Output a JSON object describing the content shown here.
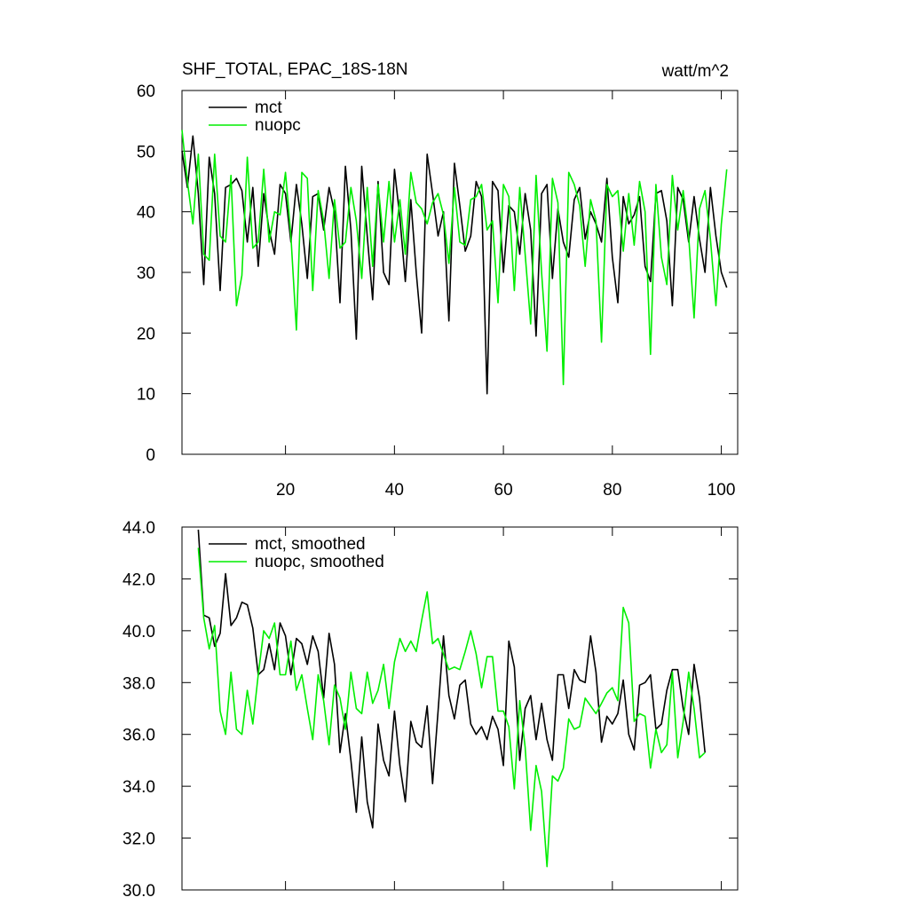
{
  "chart_data": [
    {
      "type": "line",
      "title": "SHF_TOTAL, EPAC_18S-18N",
      "title_right": "watt/m^2",
      "x": [
        1,
        2,
        3,
        4,
        5,
        6,
        7,
        8,
        9,
        10,
        11,
        12,
        13,
        14,
        15,
        16,
        17,
        18,
        19,
        20,
        21,
        22,
        23,
        24,
        25,
        26,
        27,
        28,
        29,
        30,
        31,
        32,
        33,
        34,
        35,
        36,
        37,
        38,
        39,
        40,
        41,
        42,
        43,
        44,
        45,
        46,
        47,
        48,
        49,
        50,
        51,
        52,
        53,
        54,
        55,
        56,
        57,
        58,
        59,
        60,
        61,
        62,
        63,
        64,
        65,
        66,
        67,
        68,
        69,
        70,
        71,
        72,
        73,
        74,
        75,
        76,
        77,
        78,
        79,
        80,
        81,
        82,
        83,
        84,
        85,
        86,
        87,
        88,
        89,
        90,
        91,
        92,
        93,
        94,
        95,
        96,
        97,
        98,
        99,
        100,
        101
      ],
      "series": [
        {
          "name": "mct",
          "color": "#000000",
          "values": [
            50,
            44,
            52.5,
            43,
            28,
            49,
            43,
            27,
            44,
            44.5,
            45.5,
            43.5,
            35,
            44,
            31,
            43,
            37,
            33,
            44.5,
            43,
            35,
            44.5,
            38,
            29,
            42.5,
            43,
            37,
            44,
            40,
            25,
            47.5,
            37,
            19,
            47.5,
            36,
            25.5,
            45,
            30,
            28,
            47,
            39,
            28.5,
            42,
            30,
            20,
            49.5,
            43,
            36,
            40,
            22,
            48,
            41,
            33.5,
            36,
            45,
            42.5,
            10,
            45,
            43.5,
            30,
            41,
            40,
            33,
            43,
            37,
            19.5,
            43,
            44.5,
            29,
            40.5,
            35,
            32.5,
            42,
            44,
            35.5,
            40,
            38,
            35,
            45.5,
            32.5,
            25,
            42.5,
            38,
            39.5,
            42.5,
            31,
            28.5,
            43,
            43.5,
            38.5,
            24.5,
            44,
            42,
            35,
            42.5,
            35.5,
            30,
            44,
            36,
            30,
            27.5
          ]
        },
        {
          "name": "nuopc",
          "color": "#00ee00",
          "values": [
            53.5,
            45,
            38,
            49.5,
            33,
            32,
            49.5,
            36,
            35,
            46,
            24.5,
            29.5,
            49,
            34,
            35,
            47,
            35,
            40,
            39.5,
            46.5,
            36,
            20.5,
            46.5,
            45.5,
            27,
            43.5,
            38.5,
            29,
            42,
            34,
            35,
            44,
            38.5,
            29,
            44,
            31,
            44.5,
            35,
            45,
            35,
            42,
            33,
            46.5,
            41.5,
            40.5,
            38,
            41.5,
            43,
            39.5,
            31.5,
            44,
            35,
            34.5,
            42,
            42.5,
            44.5,
            37,
            38.5,
            25,
            44.5,
            42.5,
            27,
            44,
            33,
            21.5,
            46,
            30,
            17,
            45.5,
            41.5,
            11.5,
            46.5,
            44.5,
            41,
            31,
            42,
            38.5,
            18.5,
            44.5,
            42.5,
            43.5,
            33.5,
            43,
            34.5,
            45,
            40,
            16.5,
            44.5,
            32.5,
            28,
            46,
            37,
            43.5,
            36,
            22.5,
            40.5,
            43.5,
            35.5,
            24.5,
            38,
            47
          ]
        }
      ],
      "xlim": [
        1,
        103
      ],
      "xticks": [
        20,
        40,
        60,
        80,
        100
      ],
      "show_xtick_labels": true,
      "ylim": [
        0,
        60
      ],
      "yticks": [
        0,
        10,
        20,
        30,
        40,
        50,
        60
      ],
      "legend": "upper left"
    },
    {
      "type": "line",
      "x": [
        4,
        5,
        6,
        7,
        8,
        9,
        10,
        11,
        12,
        13,
        14,
        15,
        16,
        17,
        18,
        19,
        20,
        21,
        22,
        23,
        24,
        25,
        26,
        27,
        28,
        29,
        30,
        31,
        32,
        33,
        34,
        35,
        36,
        37,
        38,
        39,
        40,
        41,
        42,
        43,
        44,
        45,
        46,
        47,
        48,
        49,
        50,
        51,
        52,
        53,
        54,
        55,
        56,
        57,
        58,
        59,
        60,
        61,
        62,
        63,
        64,
        65,
        66,
        67,
        68,
        69,
        70,
        71,
        72,
        73,
        74,
        75,
        76,
        77,
        78,
        79,
        80,
        81,
        82,
        83,
        84,
        85,
        86,
        87,
        88,
        89,
        90,
        91,
        92,
        93,
        94,
        95,
        96,
        97
      ],
      "series": [
        {
          "name": "mct, smoothed",
          "color": "#000000",
          "values": [
            43.9,
            40.6,
            40.5,
            39.4,
            39.9,
            42.2,
            40.2,
            40.5,
            41.1,
            41.0,
            40.1,
            38.3,
            38.5,
            39.5,
            38.5,
            40.3,
            39.8,
            38.3,
            39.7,
            39.5,
            38.7,
            39.8,
            39.2,
            37.4,
            39.9,
            38.7,
            35.3,
            36.8,
            35.0,
            33.0,
            35.9,
            33.4,
            32.4,
            36.4,
            35.0,
            34.4,
            36.9,
            34.8,
            33.4,
            36.5,
            35.7,
            35.5,
            37.1,
            34.1,
            36.9,
            39.8,
            37.5,
            36.6,
            37.9,
            38.1,
            36.4,
            36.0,
            36.3,
            35.8,
            36.7,
            36.2,
            34.8,
            39.6,
            38.6,
            35.0,
            37.0,
            37.5,
            35.8,
            37.2,
            35.8,
            35.0,
            38.3,
            38.3,
            37.0,
            38.5,
            38.1,
            38.0,
            39.8,
            38.4,
            35.7,
            36.7,
            36.4,
            36.8,
            38.1,
            36.0,
            35.4,
            37.9,
            38.0,
            38.3,
            36.2,
            36.4,
            37.7,
            38.5,
            38.5,
            37.0,
            36.0,
            38.7,
            37.4,
            35.3
          ]
        },
        {
          "name": "nuopc, smoothed",
          "color": "#00ee00",
          "values": [
            43.2,
            40.5,
            39.3,
            40.2,
            36.9,
            36.0,
            38.4,
            36.2,
            36.0,
            37.7,
            36.4,
            38.3,
            40.0,
            39.7,
            40.3,
            38.3,
            38.3,
            39.6,
            37.7,
            38.3,
            37.0,
            35.8,
            38.3,
            37.3,
            35.6,
            37.9,
            37.4,
            36.2,
            38.4,
            37.0,
            36.8,
            38.4,
            37.2,
            37.7,
            38.7,
            37.0,
            38.8,
            39.7,
            39.2,
            39.6,
            39.2,
            40.4,
            41.5,
            39.5,
            39.7,
            39.1,
            38.5,
            38.6,
            38.5,
            39.2,
            40.0,
            39.1,
            37.8,
            39.0,
            39.0,
            36.9,
            36.9,
            36.3,
            33.9,
            37.3,
            35.5,
            32.3,
            34.8,
            33.8,
            30.9,
            34.4,
            34.2,
            34.7,
            36.6,
            36.2,
            36.3,
            37.4,
            37.1,
            36.8,
            37.2,
            37.6,
            37.8,
            37.3,
            40.9,
            40.3,
            36.5,
            36.8,
            36.7,
            34.7,
            36.2,
            35.3,
            35.6,
            38.4,
            35.1,
            36.5,
            38.4,
            37.0,
            35.1,
            35.3
          ]
        }
      ],
      "xlim": [
        1,
        103
      ],
      "xticks": [
        20,
        40,
        60,
        80,
        100
      ],
      "show_xtick_labels": false,
      "ylim": [
        30,
        44
      ],
      "yticks": [
        {
          "value": 30,
          "label": "30.0"
        },
        {
          "value": 32,
          "label": "32.0"
        },
        {
          "value": 34,
          "label": "34.0"
        },
        {
          "value": 36,
          "label": "36.0"
        },
        {
          "value": 38,
          "label": "38.0"
        },
        {
          "value": 40,
          "label": "40.0"
        },
        {
          "value": 42,
          "label": "42.0"
        },
        {
          "value": 44,
          "label": "44.0"
        }
      ],
      "legend": "upper left"
    }
  ]
}
